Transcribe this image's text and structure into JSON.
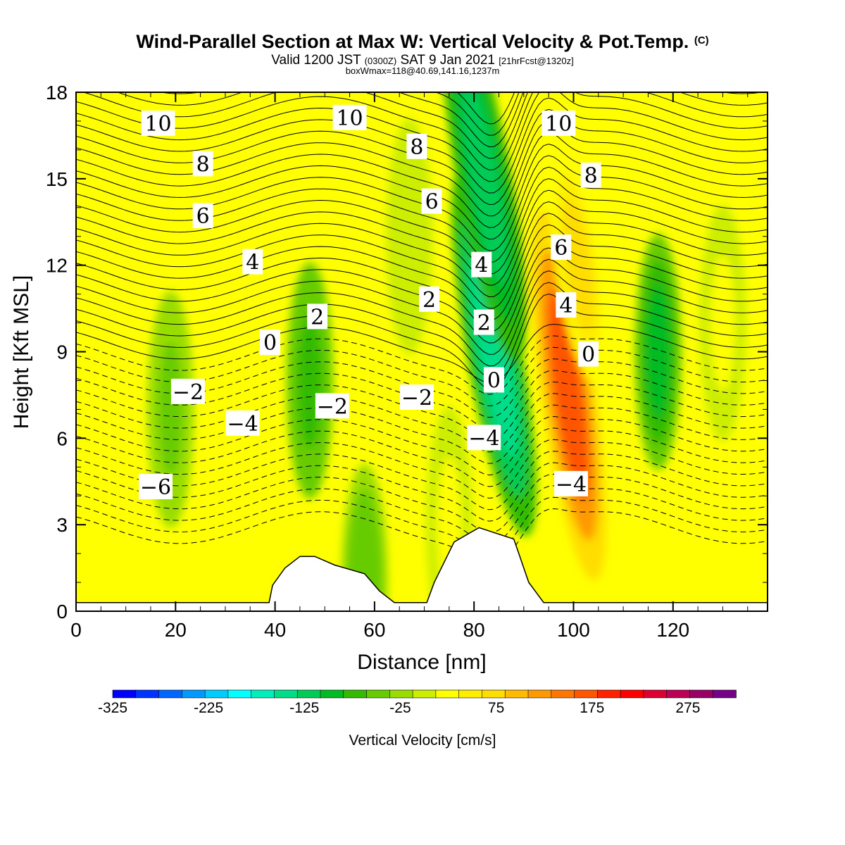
{
  "header": {
    "title": "Wind-Parallel Section at Max W: Vertical Velocity & Pot.Temp.",
    "copyright": "(C)",
    "valid_a": "Valid 1200 JST",
    "valid_b": "(0300Z)",
    "valid_c": "SAT 9 Jan 2021",
    "valid_d": "[21hrFcst@1320z]",
    "box": "boxWmax=118@40.69,141.16,1237m"
  },
  "chart_data": {
    "type": "heatmap",
    "xlabel": "Distance [nm]",
    "ylabel": "Height [Kft MSL]",
    "xlim": [
      0,
      139
    ],
    "ylim": [
      0,
      18
    ],
    "x_ticks": [
      "0",
      "20",
      "40",
      "60",
      "80",
      "100",
      "120"
    ],
    "y_ticks": [
      "0",
      "3",
      "6",
      "9",
      "12",
      "15",
      "18"
    ],
    "colorbar": {
      "label": "Vertical Velocity [cm/s]",
      "min": -325,
      "max": 325,
      "step": 25,
      "tick_labels": [
        "-325",
        "-225",
        "-125",
        "-25",
        "75",
        "175",
        "275"
      ],
      "colors": [
        "#0000ff",
        "#0033ff",
        "#0066ff",
        "#0099ff",
        "#00ccff",
        "#00ffff",
        "#00eebb",
        "#00dd88",
        "#00cc55",
        "#00bb22",
        "#33bb00",
        "#66cc00",
        "#99dd00",
        "#ccee00",
        "#ffff00",
        "#ffee00",
        "#ffdd00",
        "#ffbb00",
        "#ff9900",
        "#ff7700",
        "#ff5500",
        "#ff2200",
        "#ff0000",
        "#dd0033",
        "#bb0055",
        "#990066",
        "#770088"
      ]
    },
    "w_features": [
      {
        "x": 84,
        "y": 9,
        "value": -150
      },
      {
        "x": 82,
        "y": 15,
        "value": -120
      },
      {
        "x": 99,
        "y": 7.5,
        "value": 190
      },
      {
        "x": 101,
        "y": 12,
        "value": 90
      },
      {
        "x": 117,
        "y": 9,
        "value": -80
      },
      {
        "x": 47,
        "y": 8,
        "value": -60
      },
      {
        "x": 67,
        "y": 13,
        "value": 20
      },
      {
        "x": 19,
        "y": 7,
        "value": -30
      },
      {
        "x": 130,
        "y": 10,
        "value": 30
      },
      {
        "x": 75,
        "y": 3,
        "value": 30
      },
      {
        "x": 58,
        "y": 1,
        "value": -50
      }
    ],
    "terrain_kft": [
      {
        "x": 0,
        "y": 0.3
      },
      {
        "x": 38.8,
        "y": 0.3
      },
      {
        "x": 39.5,
        "y": 0.9
      },
      {
        "x": 42,
        "y": 1.5
      },
      {
        "x": 45,
        "y": 1.9
      },
      {
        "x": 48,
        "y": 1.9
      },
      {
        "x": 52,
        "y": 1.6
      },
      {
        "x": 58,
        "y": 1.3
      },
      {
        "x": 61,
        "y": 0.7
      },
      {
        "x": 64,
        "y": 0.3
      },
      {
        "x": 70.5,
        "y": 0.3
      },
      {
        "x": 72,
        "y": 1
      },
      {
        "x": 76,
        "y": 2.4
      },
      {
        "x": 81,
        "y": 2.9
      },
      {
        "x": 88,
        "y": 2.5
      },
      {
        "x": 91,
        "y": 1
      },
      {
        "x": 94,
        "y": 0.3
      },
      {
        "x": 139,
        "y": 0.3
      }
    ],
    "theta_contours": [
      {
        "value": 10,
        "label": "10",
        "label_x": 16.5,
        "label_y": 16.9
      },
      {
        "value": 10,
        "label": "10",
        "label_x": 55,
        "label_y": 17.1
      },
      {
        "value": 10,
        "label": "10",
        "label_x": 97,
        "label_y": 16.9
      },
      {
        "value": 8,
        "label": "8",
        "label_x": 25.5,
        "label_y": 15.5
      },
      {
        "value": 8,
        "label": "8",
        "label_x": 68.5,
        "label_y": 16.1
      },
      {
        "value": 8,
        "label": "8",
        "label_x": 103.5,
        "label_y": 15.1
      },
      {
        "value": 6,
        "label": "6",
        "label_x": 25.5,
        "label_y": 13.7
      },
      {
        "value": 6,
        "label": "6",
        "label_x": 71.5,
        "label_y": 14.2
      },
      {
        "value": 6,
        "label": "6",
        "label_x": 97.5,
        "label_y": 12.6
      },
      {
        "value": 4,
        "label": "4",
        "label_x": 35.5,
        "label_y": 12.1
      },
      {
        "value": 4,
        "label": "4",
        "label_x": 81.5,
        "label_y": 12
      },
      {
        "value": 4,
        "label": "4",
        "label_x": 98.5,
        "label_y": 10.6
      },
      {
        "value": 2,
        "label": "2",
        "label_x": 48.5,
        "label_y": 10.2
      },
      {
        "value": 2,
        "label": "2",
        "label_x": 71,
        "label_y": 10.8
      },
      {
        "value": 2,
        "label": "2",
        "label_x": 82,
        "label_y": 10
      },
      {
        "value": 0,
        "label": "0",
        "label_x": 39,
        "label_y": 9.3
      },
      {
        "value": 0,
        "label": "0",
        "label_x": 84,
        "label_y": 8
      },
      {
        "value": 0,
        "label": "0",
        "label_x": 103,
        "label_y": 8.9
      },
      {
        "value": -2,
        "label": "−2",
        "label_x": 22.5,
        "label_y": 7.6
      },
      {
        "value": -2,
        "label": "−2",
        "label_x": 51.5,
        "label_y": 7.1
      },
      {
        "value": -2,
        "label": "−2",
        "label_x": 68.5,
        "label_y": 7.4
      },
      {
        "value": -4,
        "label": "−4",
        "label_x": 33.5,
        "label_y": 6.5
      },
      {
        "value": -4,
        "label": "−4",
        "label_x": 82,
        "label_y": 6
      },
      {
        "value": -4,
        "label": "−4",
        "label_x": 99.5,
        "label_y": 4.4
      },
      {
        "value": -6,
        "label": "−6",
        "label_x": 16,
        "label_y": 4.3
      }
    ]
  }
}
